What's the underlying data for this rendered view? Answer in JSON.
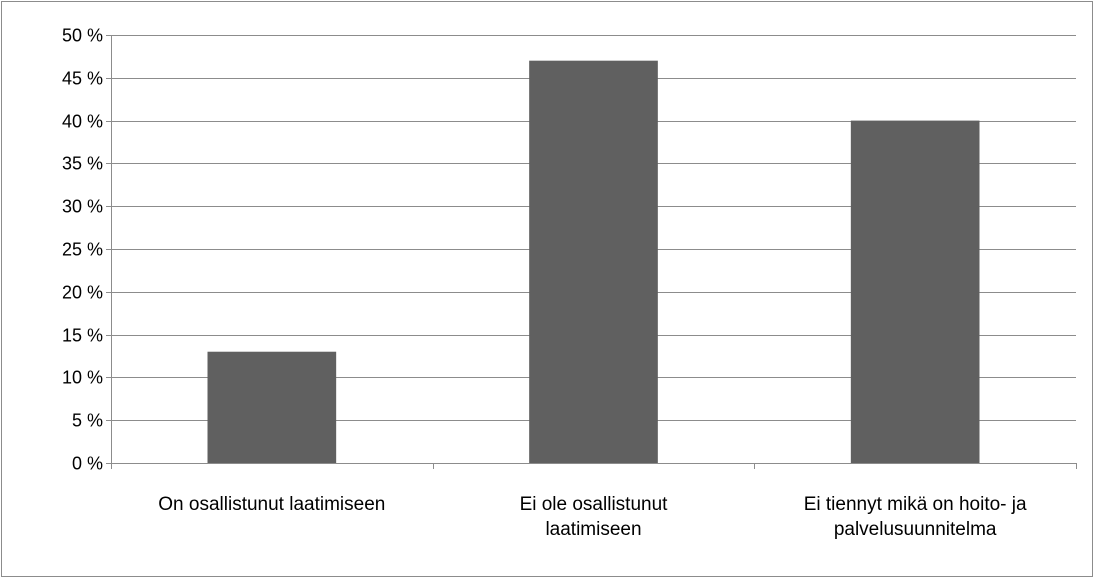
{
  "chart_data": {
    "type": "bar",
    "categories": [
      [
        "On osallistunut laatimiseen"
      ],
      [
        "Ei ole osallistunut",
        "laatimiseen"
      ],
      [
        "Ei tiennyt mikä on hoito- ja",
        "palvelusuunnitelma"
      ]
    ],
    "values": [
      13,
      47,
      40
    ],
    "ylim": [
      0,
      50
    ],
    "ytick_step": 5,
    "ytick_suffix": " %",
    "grid": true,
    "legend": "none",
    "title": "",
    "xlabel": "",
    "ylabel": "",
    "colors": {
      "bar": "#606060",
      "grid": "#8c8c8c",
      "axis": "#8c8c8c"
    }
  }
}
